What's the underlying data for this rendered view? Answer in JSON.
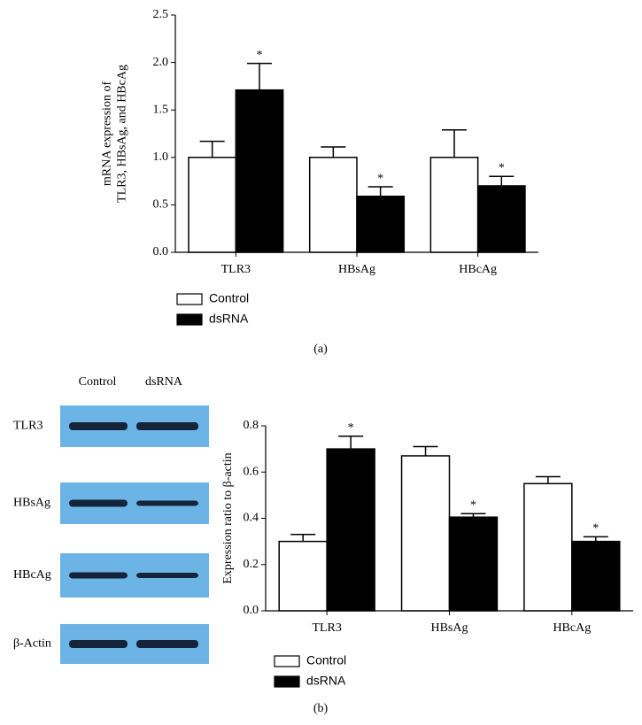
{
  "chart_data": [
    {
      "type": "bar",
      "ylabel": [
        "mRNA expression of",
        "TLR3, HBsAg, and HBcAg"
      ],
      "categories": [
        "TLR3",
        "HBsAg",
        "HBcAg"
      ],
      "series": [
        {
          "name": "Control",
          "color": "#ffffff",
          "values": [
            1.0,
            1.0,
            1.0
          ],
          "errors": [
            0.17,
            0.11,
            0.29
          ],
          "significance": [
            null,
            null,
            null
          ]
        },
        {
          "name": "dsRNA",
          "color": "#000000",
          "values": [
            1.71,
            0.59,
            0.7
          ],
          "errors": [
            0.28,
            0.1,
            0.1
          ],
          "significance": [
            "*",
            "*",
            "*"
          ]
        }
      ],
      "ylim": [
        0,
        2.5
      ],
      "yticks": [
        {
          "value": 0,
          "label": "0.0"
        },
        {
          "value": 0.5,
          "label": "0.5"
        },
        {
          "value": 1,
          "label": "1.0"
        },
        {
          "value": 1.5,
          "label": "1.5"
        },
        {
          "value": 2,
          "label": "2.0"
        },
        {
          "value": 2.5,
          "label": "2.5"
        }
      ],
      "legend": "bottom-left",
      "grid": false
    },
    {
      "type": "bar",
      "ylabel": [
        "Expression ratio to β-actin"
      ],
      "categories": [
        "TLR3",
        "HBsAg",
        "HBcAg"
      ],
      "series": [
        {
          "name": "Control",
          "color": "#ffffff",
          "values": [
            0.3,
            0.67,
            0.55
          ],
          "errors": [
            0.03,
            0.04,
            0.03
          ],
          "significance": [
            null,
            null,
            null
          ]
        },
        {
          "name": "dsRNA",
          "color": "#000000",
          "values": [
            0.7,
            0.405,
            0.3
          ],
          "errors": [
            0.055,
            0.015,
            0.02
          ],
          "significance": [
            "*",
            "*",
            "*"
          ]
        }
      ],
      "ylim": [
        0,
        0.8
      ],
      "yticks": [
        {
          "value": 0,
          "label": "0.0"
        },
        {
          "value": 0.2,
          "label": "0.2"
        },
        {
          "value": 0.4,
          "label": "0.4"
        },
        {
          "value": 0.6,
          "label": "0.6"
        },
        {
          "value": 0.8,
          "label": "0.8"
        }
      ],
      "legend": "bottom-left",
      "grid": false
    }
  ],
  "panel_labels": [
    "(a)",
    "(b)"
  ],
  "blot": {
    "columns": [
      "Control",
      "dsRNA"
    ],
    "rows": [
      "TLR3",
      "HBsAg",
      "HBcAg",
      "β-Actin"
    ]
  }
}
